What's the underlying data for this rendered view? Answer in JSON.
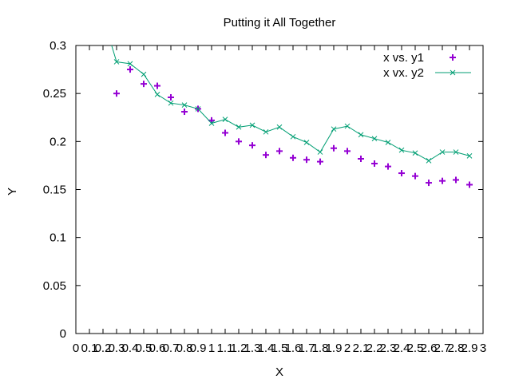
{
  "chart_data": {
    "type": "line",
    "title": "Putting it All Together",
    "xlabel": "X",
    "ylabel": "Y",
    "xlim": [
      0,
      3.0
    ],
    "ylim": [
      0,
      0.3
    ],
    "x_tick_labels": [
      "0",
      "0.1",
      "0.2",
      "0.3",
      "0.4",
      "0.5",
      "0.6",
      "0.7",
      "0.8",
      "0.9",
      "1",
      "1.1",
      "1.2",
      "1.3",
      "1.4",
      "1.5",
      "1.6",
      "1.7",
      "1.8",
      "1.9",
      "2",
      "2.1",
      "2.2",
      "2.3",
      "2.4",
      "2.5",
      "2.6",
      "2.7",
      "2.8",
      "2.9",
      "3"
    ],
    "y_tick_labels": [
      "0",
      "0.05",
      "0.1",
      "0.15",
      "0.2",
      "0.25",
      "0.3"
    ],
    "grid": false,
    "legend_position": "top-right",
    "series": [
      {
        "name": "x vs. y1",
        "style": "points",
        "marker": "plus",
        "color": "#9400d3",
        "x": [
          0.3,
          0.4,
          0.5,
          0.6,
          0.7,
          0.8,
          0.9,
          1.0,
          1.1,
          1.2,
          1.3,
          1.4,
          1.5,
          1.6,
          1.7,
          1.8,
          1.9,
          2.0,
          2.1,
          2.2,
          2.3,
          2.4,
          2.5,
          2.6,
          2.7,
          2.8,
          2.9
        ],
        "y": [
          0.25,
          0.275,
          0.26,
          0.258,
          0.246,
          0.231,
          0.234,
          0.222,
          0.209,
          0.2,
          0.196,
          0.186,
          0.19,
          0.183,
          0.181,
          0.179,
          0.193,
          0.19,
          0.182,
          0.177,
          0.174,
          0.167,
          0.164,
          0.157,
          0.159,
          0.16,
          0.155
        ]
      },
      {
        "name": "x vx. y2",
        "style": "linespoints",
        "marker": "x",
        "color": "#009e73",
        "x": [
          0.2,
          0.3,
          0.4,
          0.5,
          0.6,
          0.7,
          0.8,
          0.9,
          1.0,
          1.1,
          1.2,
          1.3,
          1.4,
          1.5,
          1.6,
          1.7,
          1.8,
          1.9,
          2.0,
          2.1,
          2.2,
          2.3,
          2.4,
          2.5,
          2.6,
          2.7,
          2.8,
          2.9
        ],
        "y": [
          0.33,
          0.283,
          0.281,
          0.27,
          0.249,
          0.24,
          0.238,
          0.234,
          0.219,
          0.223,
          0.215,
          0.217,
          0.21,
          0.215,
          0.205,
          0.199,
          0.189,
          0.213,
          0.216,
          0.207,
          0.203,
          0.199,
          0.191,
          0.188,
          0.18,
          0.189,
          0.189,
          0.185
        ]
      }
    ]
  }
}
